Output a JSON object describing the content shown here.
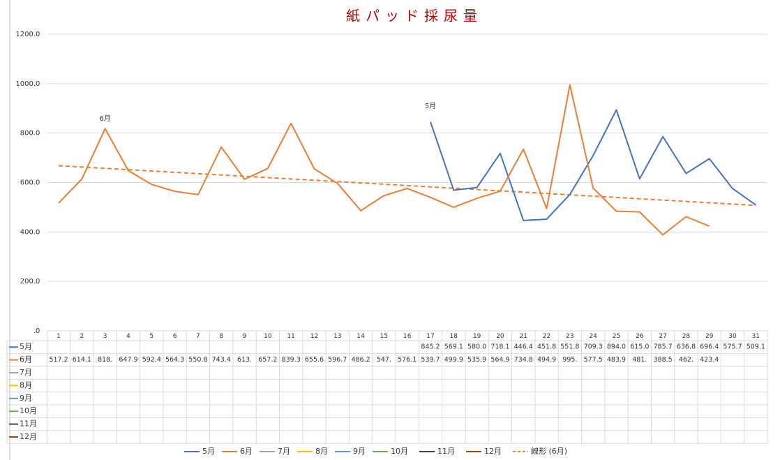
{
  "chart_data": {
    "type": "line",
    "title": "紙パッド採尿量",
    "categories": [
      "1",
      "2",
      "3",
      "4",
      "5",
      "6",
      "7",
      "8",
      "9",
      "10",
      "11",
      "12",
      "13",
      "14",
      "15",
      "16",
      "17",
      "18",
      "19",
      "20",
      "21",
      "22",
      "23",
      "24",
      "25",
      "26",
      "27",
      "28",
      "29",
      "30",
      "31"
    ],
    "series": [
      {
        "name": "5月",
        "color": "#4472c4",
        "values": [
          null,
          null,
          null,
          null,
          null,
          null,
          null,
          null,
          null,
          null,
          null,
          null,
          null,
          null,
          null,
          null,
          845.2,
          569.1,
          580.0,
          718.1,
          446.4,
          451.8,
          551.8,
          709.3,
          894.0,
          615.0,
          785.7,
          636.8,
          696.4,
          575.7,
          509.1
        ],
        "value_labels": [
          null,
          null,
          null,
          null,
          null,
          null,
          null,
          null,
          null,
          null,
          null,
          null,
          null,
          null,
          null,
          null,
          "845.2",
          "569.1",
          "580.0",
          "718.1",
          "446.4",
          "451.8",
          "551.8",
          "709.3",
          "894.0",
          "615.0",
          "785.7",
          "636.8",
          "696.4",
          "575.7",
          "509.1"
        ]
      },
      {
        "name": "6月",
        "color": "#ed7d31",
        "values": [
          517.2,
          614.1,
          818,
          647.9,
          592.4,
          564.3,
          550.8,
          743.4,
          613,
          657.2,
          839.3,
          655.6,
          596.7,
          486.2,
          547,
          576.1,
          539.7,
          499.9,
          535.9,
          564.9,
          734.8,
          494.9,
          995,
          577.5,
          483.9,
          481,
          388.5,
          462,
          423.4,
          null,
          null
        ],
        "value_labels": [
          "517.2",
          "614.1",
          "818.",
          "647.9",
          "592.4",
          "564.3",
          "550.8",
          "743.4",
          "613.",
          "657.2",
          "839.3",
          "655.6",
          "596.7",
          "486.2",
          "547.",
          "576.1",
          "539.7",
          "499.9",
          "535.9",
          "564.9",
          "734.8",
          "494.9",
          "995.",
          "577.5",
          "483.9",
          "481.",
          "388.5",
          "462.",
          "423.4",
          null,
          null
        ]
      },
      {
        "name": "7月",
        "color": "#a5a5a5",
        "values": [
          null,
          null,
          null,
          null,
          null,
          null,
          null,
          null,
          null,
          null,
          null,
          null,
          null,
          null,
          null,
          null,
          null,
          null,
          null,
          null,
          null,
          null,
          null,
          null,
          null,
          null,
          null,
          null,
          null,
          null,
          null
        ]
      },
      {
        "name": "8月",
        "color": "#ffc000",
        "values": [
          null,
          null,
          null,
          null,
          null,
          null,
          null,
          null,
          null,
          null,
          null,
          null,
          null,
          null,
          null,
          null,
          null,
          null,
          null,
          null,
          null,
          null,
          null,
          null,
          null,
          null,
          null,
          null,
          null,
          null,
          null
        ]
      },
      {
        "name": "9月",
        "color": "#5b9bd5",
        "values": [
          null,
          null,
          null,
          null,
          null,
          null,
          null,
          null,
          null,
          null,
          null,
          null,
          null,
          null,
          null,
          null,
          null,
          null,
          null,
          null,
          null,
          null,
          null,
          null,
          null,
          null,
          null,
          null,
          null,
          null,
          null
        ]
      },
      {
        "name": "10月",
        "color": "#70ad47",
        "values": [
          null,
          null,
          null,
          null,
          null,
          null,
          null,
          null,
          null,
          null,
          null,
          null,
          null,
          null,
          null,
          null,
          null,
          null,
          null,
          null,
          null,
          null,
          null,
          null,
          null,
          null,
          null,
          null,
          null,
          null,
          null
        ]
      },
      {
        "name": "11月",
        "color": "#264478",
        "values": [
          null,
          null,
          null,
          null,
          null,
          null,
          null,
          null,
          null,
          null,
          null,
          null,
          null,
          null,
          null,
          null,
          null,
          null,
          null,
          null,
          null,
          null,
          null,
          null,
          null,
          null,
          null,
          null,
          null,
          null,
          null
        ]
      },
      {
        "name": "12月",
        "color": "#9e480e",
        "values": [
          null,
          null,
          null,
          null,
          null,
          null,
          null,
          null,
          null,
          null,
          null,
          null,
          null,
          null,
          null,
          null,
          null,
          null,
          null,
          null,
          null,
          null,
          null,
          null,
          null,
          null,
          null,
          null,
          null,
          null,
          null
        ]
      }
    ],
    "trendline": {
      "name": "線形 (6月)",
      "color": "#ed7d31"
    },
    "annotations": [
      {
        "text": "6月",
        "x": 3
      },
      {
        "text": "5月",
        "x": 17
      }
    ],
    "ylim": [
      0,
      1200
    ],
    "yticks": [
      {
        "value": 0,
        "label": ".0"
      },
      {
        "value": 200,
        "label": "200.0"
      },
      {
        "value": 400,
        "label": "400.0"
      },
      {
        "value": 600,
        "label": "600.0"
      },
      {
        "value": 800,
        "label": "800.0"
      },
      {
        "value": 1000,
        "label": "1000.0"
      },
      {
        "value": 1200,
        "label": "1200.0"
      }
    ],
    "grid": true
  }
}
